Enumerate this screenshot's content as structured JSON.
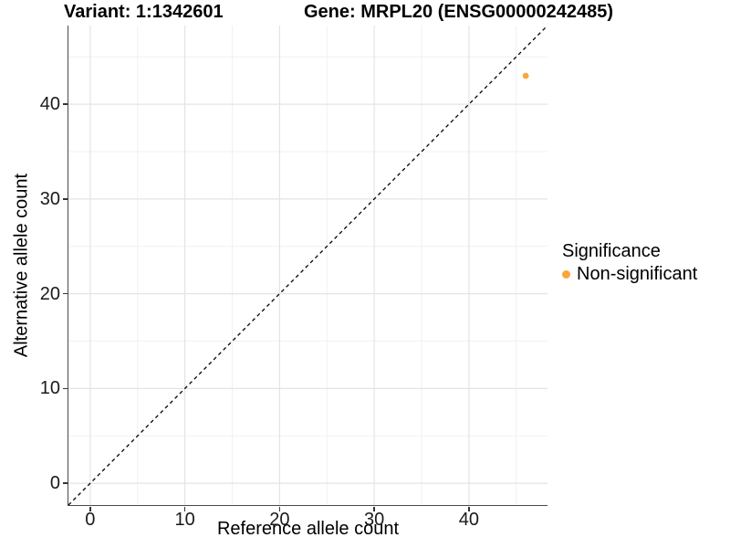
{
  "chart_data": {
    "type": "scatter",
    "title_variant": "Variant: 1:1342601",
    "title_gene": "Gene: MRPL20 (ENSG00000242485)",
    "xlabel": "Reference allele count",
    "ylabel": "Alternative allele count",
    "xlim": [
      -2.3,
      48.3
    ],
    "ylim": [
      -2.3,
      48.3
    ],
    "x_ticks": [
      0,
      10,
      20,
      30,
      40
    ],
    "y_ticks": [
      0,
      10,
      20,
      30,
      40
    ],
    "x_minor_ticks": [
      5,
      15,
      25,
      35,
      45
    ],
    "y_minor_ticks": [
      5,
      15,
      25,
      35,
      45
    ],
    "grid": true,
    "legend_title": "Significance",
    "legend_position": "right-middle",
    "series": [
      {
        "name": "Non-significant",
        "color": "#F9A63D",
        "points": [
          {
            "x": 46,
            "y": 43
          }
        ]
      }
    ],
    "reference_line": {
      "kind": "identity y=x",
      "slope": 1,
      "intercept": 0,
      "style": "dashed",
      "color": "#000000"
    }
  },
  "colors": {
    "background": "#FFFFFF",
    "grid_major": "#E4E4E4",
    "grid_minor": "#F1F1F1",
    "axis_line": "#4A4A4A",
    "tick_mark": "#333333",
    "text": "#000000"
  }
}
